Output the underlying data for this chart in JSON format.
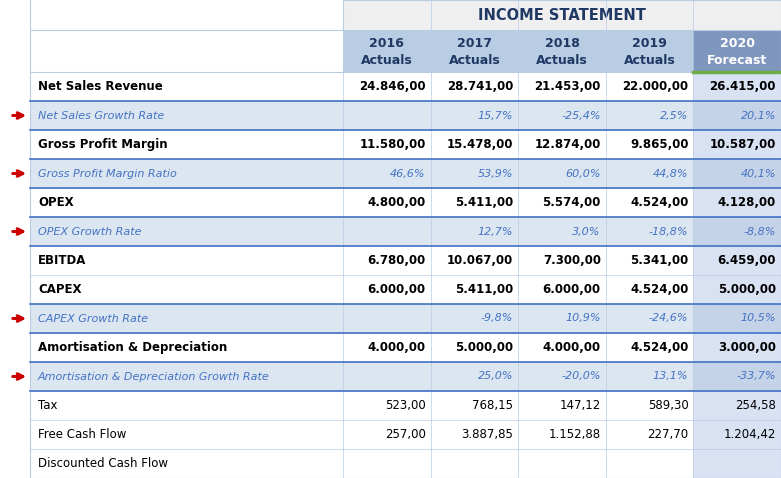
{
  "title": "INCOME STATEMENT",
  "rows": [
    {
      "label": "Net Sales Revenue",
      "values": [
        "24.846,00",
        "28.741,00",
        "21.453,00",
        "22.000,00",
        "26.415,00"
      ],
      "style": "bold",
      "bg": "#ffffff"
    },
    {
      "label": "Net Sales Growth Rate",
      "values": [
        "",
        "15,7%",
        "-25,4%",
        "2,5%",
        "20,1%"
      ],
      "style": "italic_blue",
      "bg": "#dce6f1"
    },
    {
      "label": "Gross Profit Margin",
      "values": [
        "11.580,00",
        "15.478,00",
        "12.874,00",
        "9.865,00",
        "10.587,00"
      ],
      "style": "bold",
      "bg": "#ffffff"
    },
    {
      "label": "Gross Profit Margin Ratio",
      "values": [
        "46,6%",
        "53,9%",
        "60,0%",
        "44,8%",
        "40,1%"
      ],
      "style": "italic_blue",
      "bg": "#dce6f1"
    },
    {
      "label": "OPEX",
      "values": [
        "4.800,00",
        "5.411,00",
        "5.574,00",
        "4.524,00",
        "4.128,00"
      ],
      "style": "bold",
      "bg": "#ffffff"
    },
    {
      "label": "OPEX Growth Rate",
      "values": [
        "",
        "12,7%",
        "3,0%",
        "-18,8%",
        "-8,8%"
      ],
      "style": "italic_blue",
      "bg": "#dce6f1"
    },
    {
      "label": "EBITDA",
      "values": [
        "6.780,00",
        "10.067,00",
        "7.300,00",
        "5.341,00",
        "6.459,00"
      ],
      "style": "bold",
      "bg": "#ffffff"
    },
    {
      "label": "CAPEX",
      "values": [
        "6.000,00",
        "5.411,00",
        "6.000,00",
        "4.524,00",
        "5.000,00"
      ],
      "style": "bold",
      "bg": "#ffffff"
    },
    {
      "label": "CAPEX Growth Rate",
      "values": [
        "",
        "-9,8%",
        "10,9%",
        "-24,6%",
        "10,5%"
      ],
      "style": "italic_blue",
      "bg": "#dce6f1"
    },
    {
      "label": "Amortisation & Depreciation",
      "values": [
        "4.000,00",
        "5.000,00",
        "4.000,00",
        "4.524,00",
        "3.000,00"
      ],
      "style": "bold",
      "bg": "#ffffff"
    },
    {
      "label": "Amortisation & Depreciation Growth Rate",
      "values": [
        "",
        "25,0%",
        "-20,0%",
        "13,1%",
        "-33,7%"
      ],
      "style": "italic_blue",
      "bg": "#dce6f1"
    },
    {
      "label": "Tax",
      "values": [
        "523,00",
        "768,15",
        "147,12",
        "589,30",
        "254,58"
      ],
      "style": "normal",
      "bg": "#ffffff"
    },
    {
      "label": "Free Cash Flow",
      "values": [
        "257,00",
        "3.887,85",
        "1.152,88",
        "227,70",
        "1.204,42"
      ],
      "style": "normal",
      "bg": "#ffffff"
    },
    {
      "label": "Discounted Cash Flow",
      "values": [
        "",
        "",
        "",
        "",
        ""
      ],
      "style": "normal",
      "bg": "#ffffff"
    }
  ],
  "arrow_rows": [
    1,
    3,
    5,
    8,
    10
  ],
  "col_years": [
    "2016",
    "2017",
    "2018",
    "2019",
    "2020"
  ],
  "col_subtitles": [
    "Actuals",
    "Actuals",
    "Actuals",
    "Actuals",
    "Forecast"
  ],
  "title_bg": "#efefef",
  "subheader_bg": "#b8cce4",
  "subheader_text_color": "#1f3864",
  "forecast_col_bg": "#7f96be",
  "forecast_text_color": "#ffffff",
  "blue_italic_color": "#4472c4",
  "border_blue": "#4472c4",
  "arrow_color": "#cc0000",
  "light_blue_bg": "#dce6f1",
  "forecast_data_bg": "#d9e2f3",
  "forecast_italic_bg": "#c5d3e8",
  "green_line_color": "#70ad47",
  "grid_color": "#b8cce4"
}
